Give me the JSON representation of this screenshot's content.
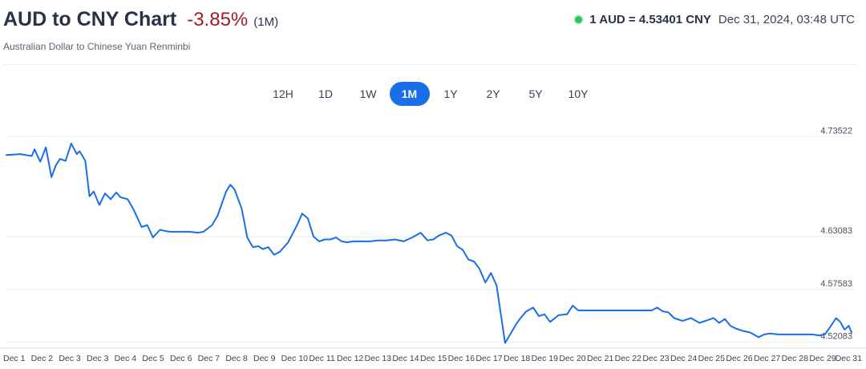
{
  "header": {
    "title": "AUD to CNY Chart",
    "change": "-3.85%",
    "period": "(1M)",
    "subtitle": "Australian Dollar to Chinese Yuan Renminbi",
    "rate": "1 AUD = 4.53401 CNY",
    "timestamp": "Dec 31, 2024, 03:48 UTC",
    "live_color": "#34c05a",
    "change_color": "#a01d2b"
  },
  "ranges": [
    "12H",
    "1D",
    "1W",
    "1M",
    "1Y",
    "2Y",
    "5Y",
    "10Y"
  ],
  "active_range": "1M",
  "chart_data": {
    "type": "line",
    "title": "",
    "xlabel": "",
    "ylabel": "",
    "y_ticks": [
      "4.73522",
      "4.63083",
      "4.57583",
      "4.52083"
    ],
    "x_ticks": [
      "Dec 1",
      "Dec 2",
      "Dec 3",
      "Dec 3",
      "Dec 4",
      "Dec 5",
      "Dec 6",
      "Dec 7",
      "Dec 8",
      "Dec 9",
      "Dec 10",
      "Dec 11",
      "Dec 12",
      "Dec 13",
      "Dec 14",
      "Dec 15",
      "Dec 16",
      "Dec 17",
      "Dec 18",
      "Dec 19",
      "Dec 20",
      "Dec 21",
      "Dec 22",
      "Dec 23",
      "Dec 24",
      "Dec 25",
      "Dec 26",
      "Dec 27",
      "Dec 28",
      "Dec 29",
      "Dec 31"
    ],
    "x_range": [
      0,
      30
    ],
    "y_range": [
      4.5155,
      4.7522
    ],
    "grid": true,
    "line_color": "#1a6fe8",
    "series": [
      {
        "x": [
          0,
          0.5,
          0.9,
          1.0,
          1.2,
          1.4,
          1.6,
          1.75,
          1.9,
          2.1,
          2.3,
          2.5,
          2.6,
          2.8,
          2.95,
          3.1,
          3.3,
          3.5,
          3.7,
          3.9,
          4.05,
          4.3,
          4.5,
          4.8,
          5.0,
          5.2,
          5.45,
          5.6,
          5.8,
          6.0,
          6.3,
          6.5,
          6.8,
          7.0,
          7.3,
          7.5,
          7.8,
          7.95,
          8.1,
          8.35,
          8.55,
          8.75,
          8.95,
          9.1,
          9.3,
          9.5,
          9.7,
          9.85,
          10.0,
          10.3,
          10.5,
          10.7,
          10.9,
          11.1,
          11.3,
          11.5,
          11.7,
          11.9,
          12.1,
          12.3,
          12.6,
          12.9,
          13.2,
          13.5,
          13.8,
          14.1,
          14.4,
          14.7,
          14.95,
          15.15,
          15.35,
          15.6,
          15.8,
          16.0,
          16.2,
          16.4,
          16.6,
          16.8,
          17.0,
          17.2,
          17.4,
          17.7,
          17.9,
          18.0,
          18.1,
          18.25,
          18.45,
          18.7,
          18.9,
          19.1,
          19.3,
          19.6,
          19.9,
          20.1,
          20.3,
          20.5,
          20.7,
          21.0,
          21.5,
          22.0,
          22.5,
          22.9,
          23.1,
          23.3,
          23.5,
          23.7,
          24.0,
          24.3,
          24.6,
          24.9,
          25.1,
          25.3,
          25.5,
          25.7,
          25.9,
          26.1,
          26.4,
          26.7,
          26.9,
          27.1,
          27.4,
          27.7,
          28.0,
          28.3,
          28.6,
          28.85,
          29.05,
          29.25,
          29.45,
          29.6,
          29.75,
          29.9,
          30.0
        ],
        "values": [
          4.716,
          4.717,
          4.715,
          4.722,
          4.709,
          4.724,
          4.693,
          4.705,
          4.712,
          4.71,
          4.728,
          4.717,
          4.72,
          4.71,
          4.673,
          4.678,
          4.664,
          4.676,
          4.67,
          4.677,
          4.672,
          4.67,
          4.66,
          4.641,
          4.643,
          4.63,
          4.638,
          4.637,
          4.636,
          4.636,
          4.636,
          4.636,
          4.635,
          4.636,
          4.643,
          4.653,
          4.678,
          4.685,
          4.68,
          4.66,
          4.63,
          4.62,
          4.621,
          4.618,
          4.62,
          4.612,
          4.615,
          4.62,
          4.625,
          4.642,
          4.655,
          4.65,
          4.631,
          4.626,
          4.628,
          4.628,
          4.63,
          4.626,
          4.625,
          4.626,
          4.626,
          4.626,
          4.627,
          4.627,
          4.628,
          4.626,
          4.63,
          4.635,
          4.627,
          4.628,
          4.632,
          4.635,
          4.632,
          4.621,
          4.617,
          4.607,
          4.605,
          4.597,
          4.583,
          4.593,
          4.58,
          4.52,
          4.53,
          4.535,
          4.54,
          4.546,
          4.553,
          4.557,
          4.548,
          4.55,
          4.542,
          4.549,
          4.55,
          4.559,
          4.554,
          4.554,
          4.554,
          4.554,
          4.554,
          4.554,
          4.554,
          4.554,
          4.557,
          4.553,
          4.552,
          4.546,
          4.543,
          4.546,
          4.541,
          4.544,
          4.546,
          4.541,
          4.545,
          4.538,
          4.535,
          4.533,
          4.531,
          4.526,
          4.529,
          4.53,
          4.529,
          4.529,
          4.529,
          4.529,
          4.529,
          4.528,
          4.529,
          4.537,
          4.546,
          4.542,
          4.534,
          4.538,
          4.531
        ]
      }
    ]
  }
}
